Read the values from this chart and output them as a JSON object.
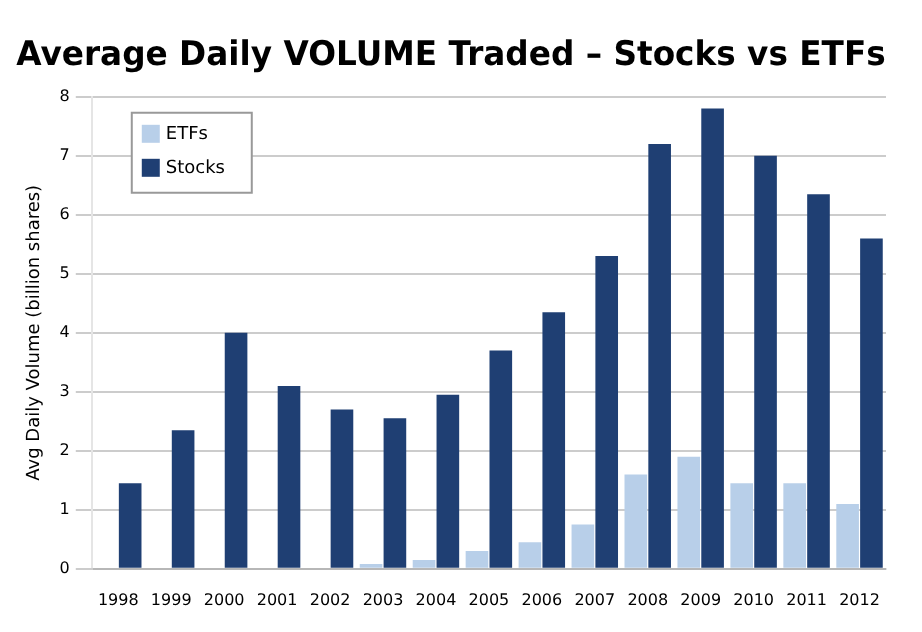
{
  "chart_data": {
    "type": "bar",
    "title": "Average Daily VOLUME Traded – Stocks vs ETFs",
    "ylabel": "Avg Daily Volume (billion shares)",
    "categories": [
      "1998",
      "1999",
      "2000",
      "2001",
      "2002",
      "2003",
      "2004",
      "2005",
      "2006",
      "2007",
      "2008",
      "2009",
      "2010",
      "2011",
      "2012"
    ],
    "series": [
      {
        "name": "ETFs",
        "color": "#b8cfe9",
        "values": [
          null,
          null,
          null,
          null,
          null,
          0.08,
          0.15,
          0.3,
          0.45,
          0.75,
          1.6,
          1.9,
          1.45,
          1.45,
          1.1
        ]
      },
      {
        "name": "Stocks",
        "color": "#1f3f73",
        "values": [
          1.45,
          2.35,
          4.0,
          3.1,
          2.7,
          2.55,
          2.95,
          3.7,
          4.35,
          5.3,
          7.2,
          7.8,
          7.0,
          6.35,
          5.6
        ]
      }
    ],
    "ylim": [
      0,
      8
    ],
    "yticks": [
      0,
      1,
      2,
      3,
      4,
      5,
      6,
      7,
      8
    ],
    "grid": "y",
    "legend": "top left"
  }
}
